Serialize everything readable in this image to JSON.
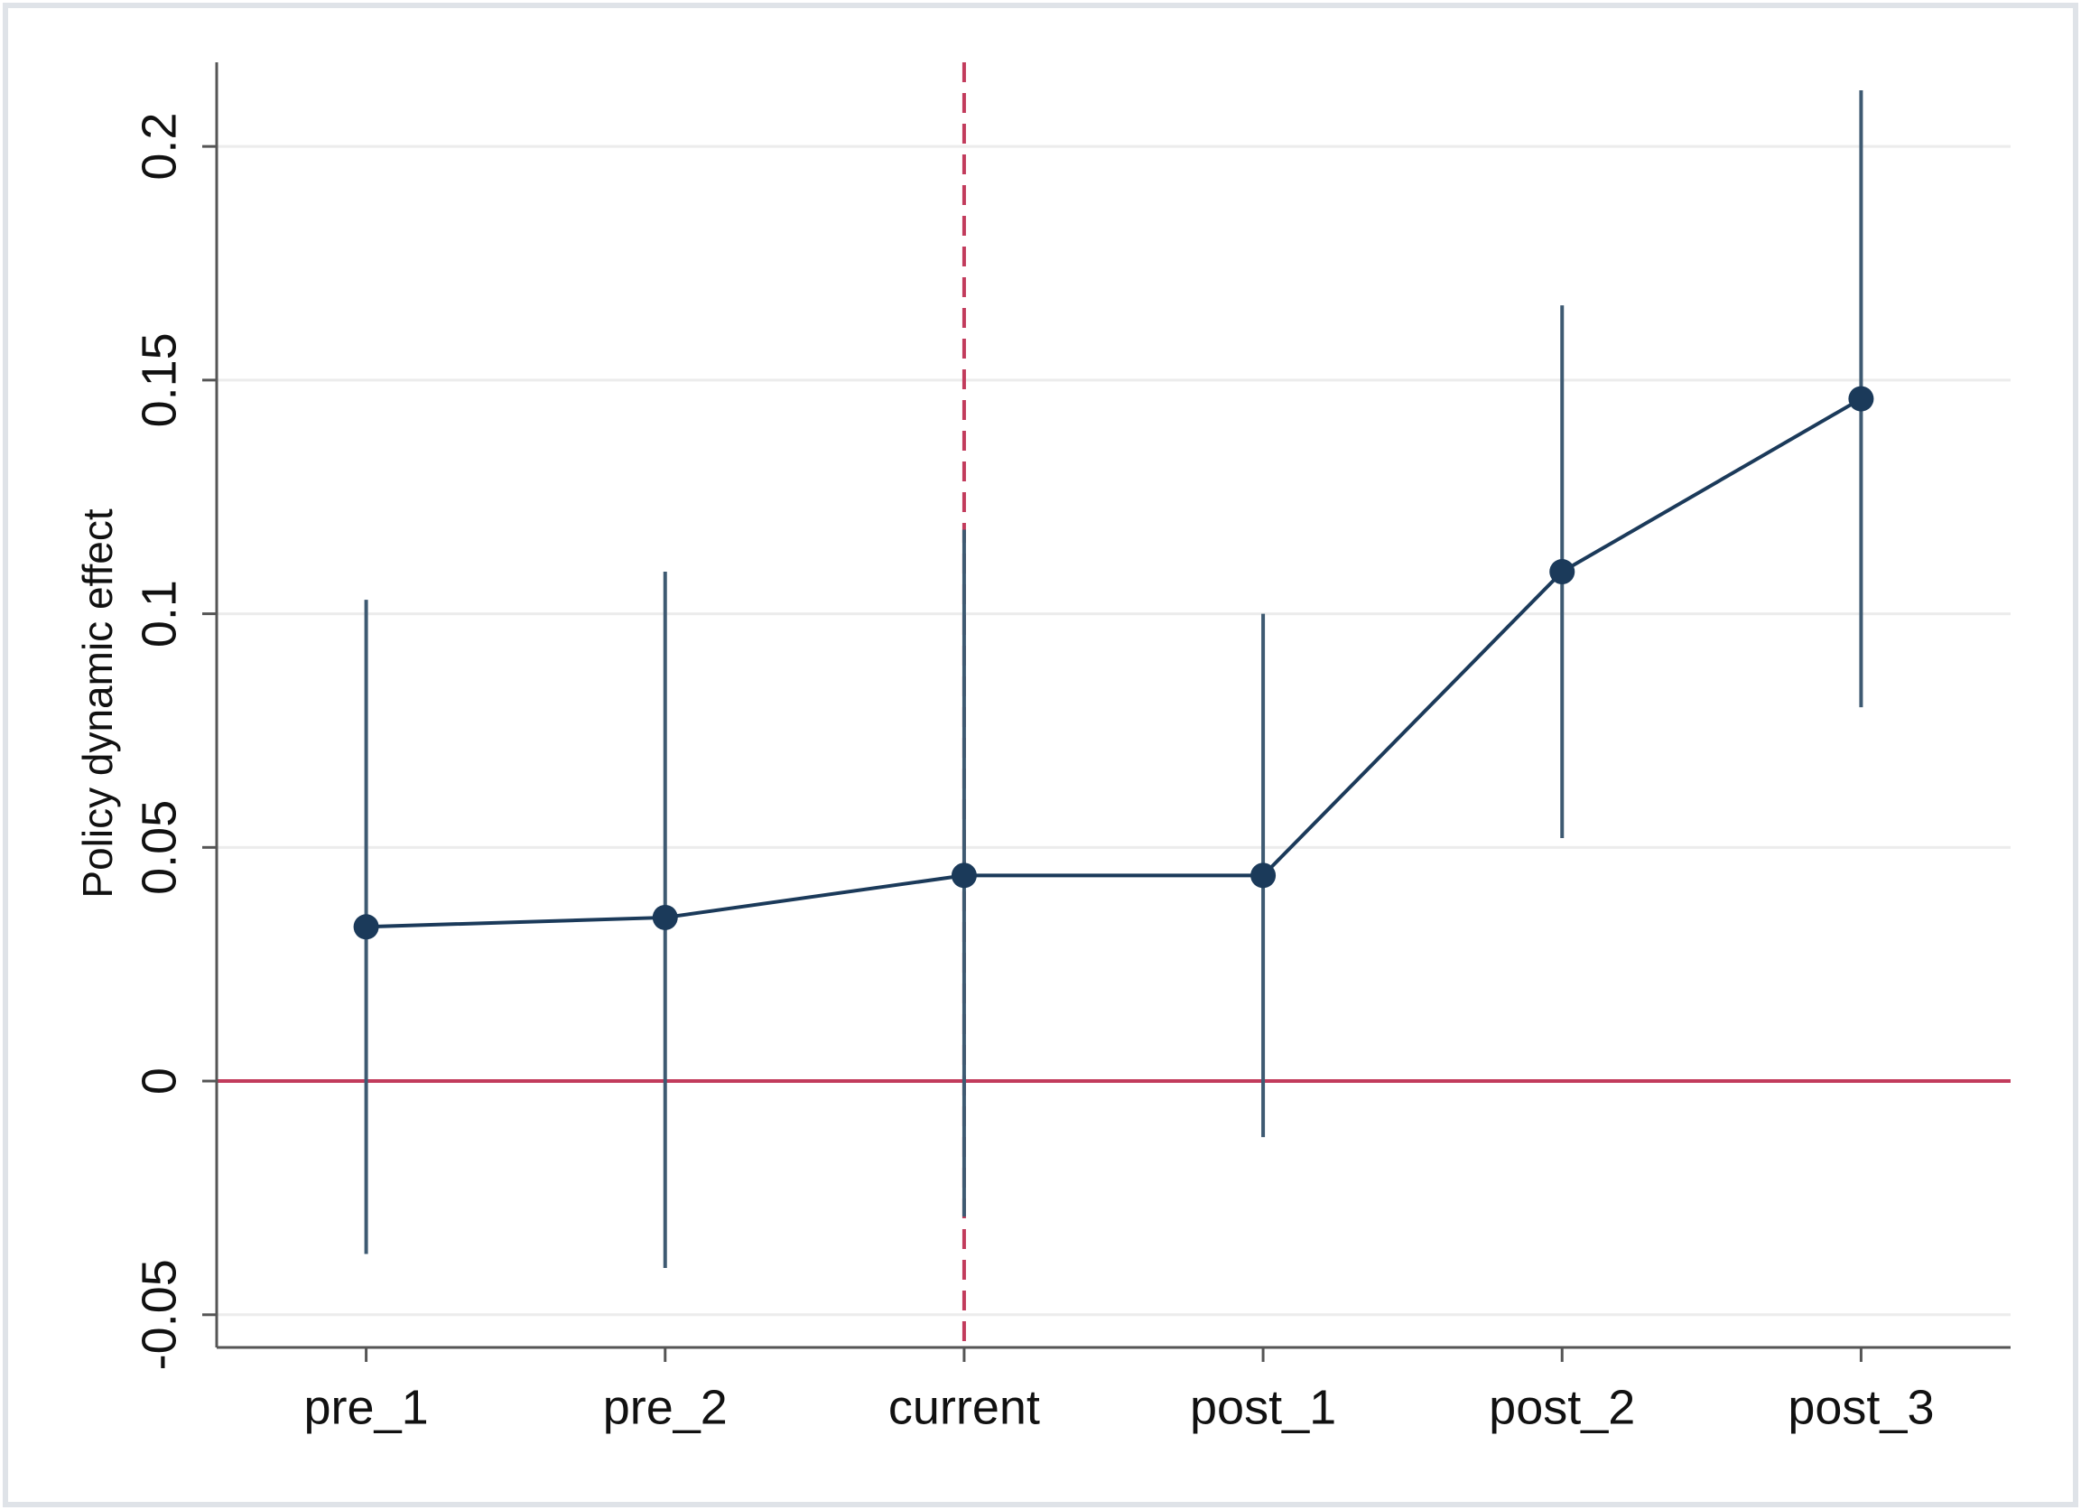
{
  "chart_data": {
    "type": "errorbar-line",
    "y_label": "Policy dynamic effect",
    "categories": [
      "pre_1",
      "pre_2",
      "current",
      "post_1",
      "post_2",
      "post_3"
    ],
    "series": [
      {
        "color": "#1b3a5a",
        "errorbar_color": "#3e5a72",
        "values": [
          0.033,
          0.035,
          0.044,
          0.044,
          0.109,
          0.146
        ],
        "lower": [
          -0.037,
          -0.04,
          -0.029,
          -0.012,
          0.052,
          0.08
        ],
        "upper": [
          0.103,
          0.109,
          0.118,
          0.1,
          0.166,
          0.212
        ]
      }
    ],
    "ylim": [
      -0.057,
      0.218
    ],
    "yticks": [
      -0.05,
      0,
      0.05,
      0.1,
      0.15,
      0.2
    ],
    "grid": true,
    "hline": 0,
    "hline_color": "#c23b5c",
    "vline": "current",
    "vline_color": "#c23b5c"
  }
}
